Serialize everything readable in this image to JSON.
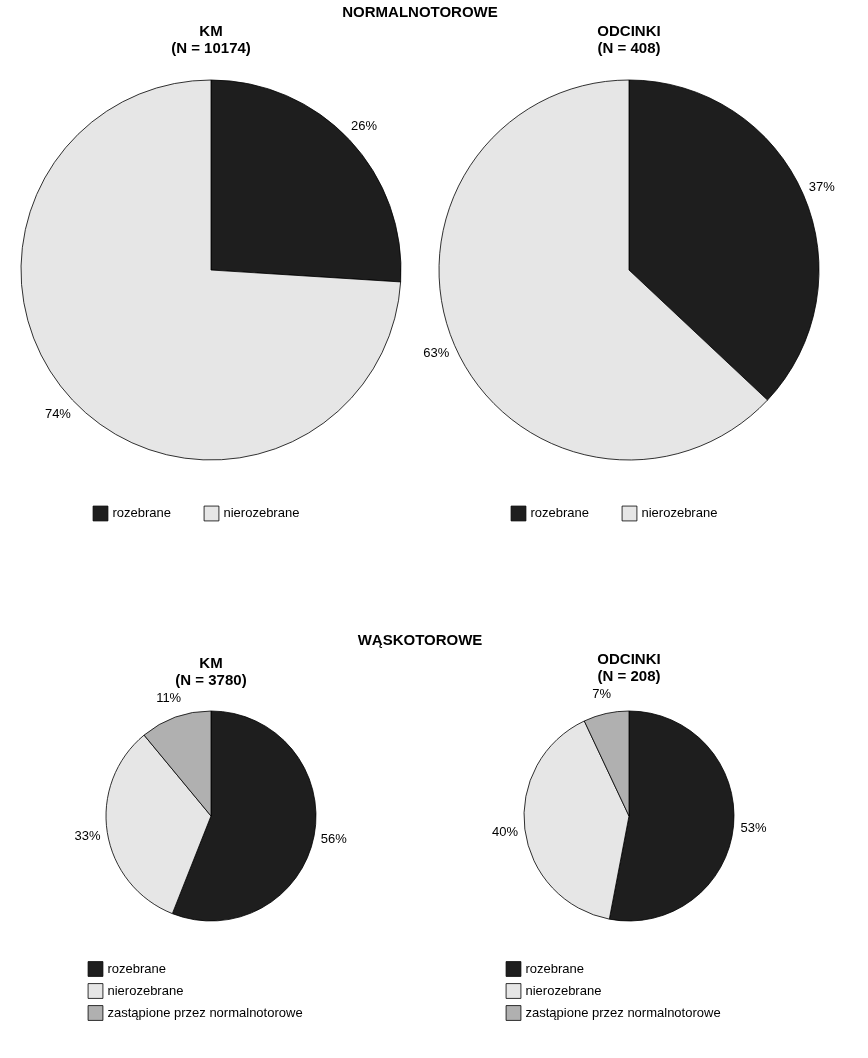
{
  "chart_data": [
    {
      "type": "pie",
      "title": "KM\n(N = 10174)",
      "annotations": [
        "NORMALNOTOROWE"
      ],
      "categories": [
        "rozebrane",
        "nierozebrane"
      ],
      "values": [
        26,
        74
      ],
      "colors": [
        "#1e1e1e",
        "#e6e6e6"
      ],
      "value_labels": [
        "26%",
        "74%"
      ],
      "legend": "bottom"
    },
    {
      "type": "pie",
      "title": "ODCINKI\n(N = 408)",
      "categories": [
        "rozebrane",
        "nierozebrane"
      ],
      "values": [
        37,
        63
      ],
      "colors": [
        "#1e1e1e",
        "#e6e6e6"
      ],
      "value_labels": [
        "37%",
        "63%"
      ],
      "legend": "bottom"
    },
    {
      "type": "pie",
      "title": "KM\n(N = 3780)",
      "annotations": [
        "WĄSKOTOROWE"
      ],
      "categories": [
        "rozebrane",
        "nierozebrane",
        "zastąpione przez normalnotorowe"
      ],
      "values": [
        56,
        33,
        11
      ],
      "colors": [
        "#1e1e1e",
        "#e6e6e6",
        "#b0b0b0"
      ],
      "value_labels": [
        "56%",
        "33%",
        "11%"
      ],
      "legend": "bottom"
    },
    {
      "type": "pie",
      "title": "ODCINKI\n(N = 208)",
      "categories": [
        "rozebrane",
        "nierozebrane",
        "zastąpione przez normalnotorowe"
      ],
      "values": [
        53,
        40,
        7
      ],
      "colors": [
        "#1e1e1e",
        "#e6e6e6",
        "#b0b0b0"
      ],
      "value_labels": [
        "53%",
        "40%",
        "7%"
      ],
      "legend": "bottom"
    }
  ]
}
